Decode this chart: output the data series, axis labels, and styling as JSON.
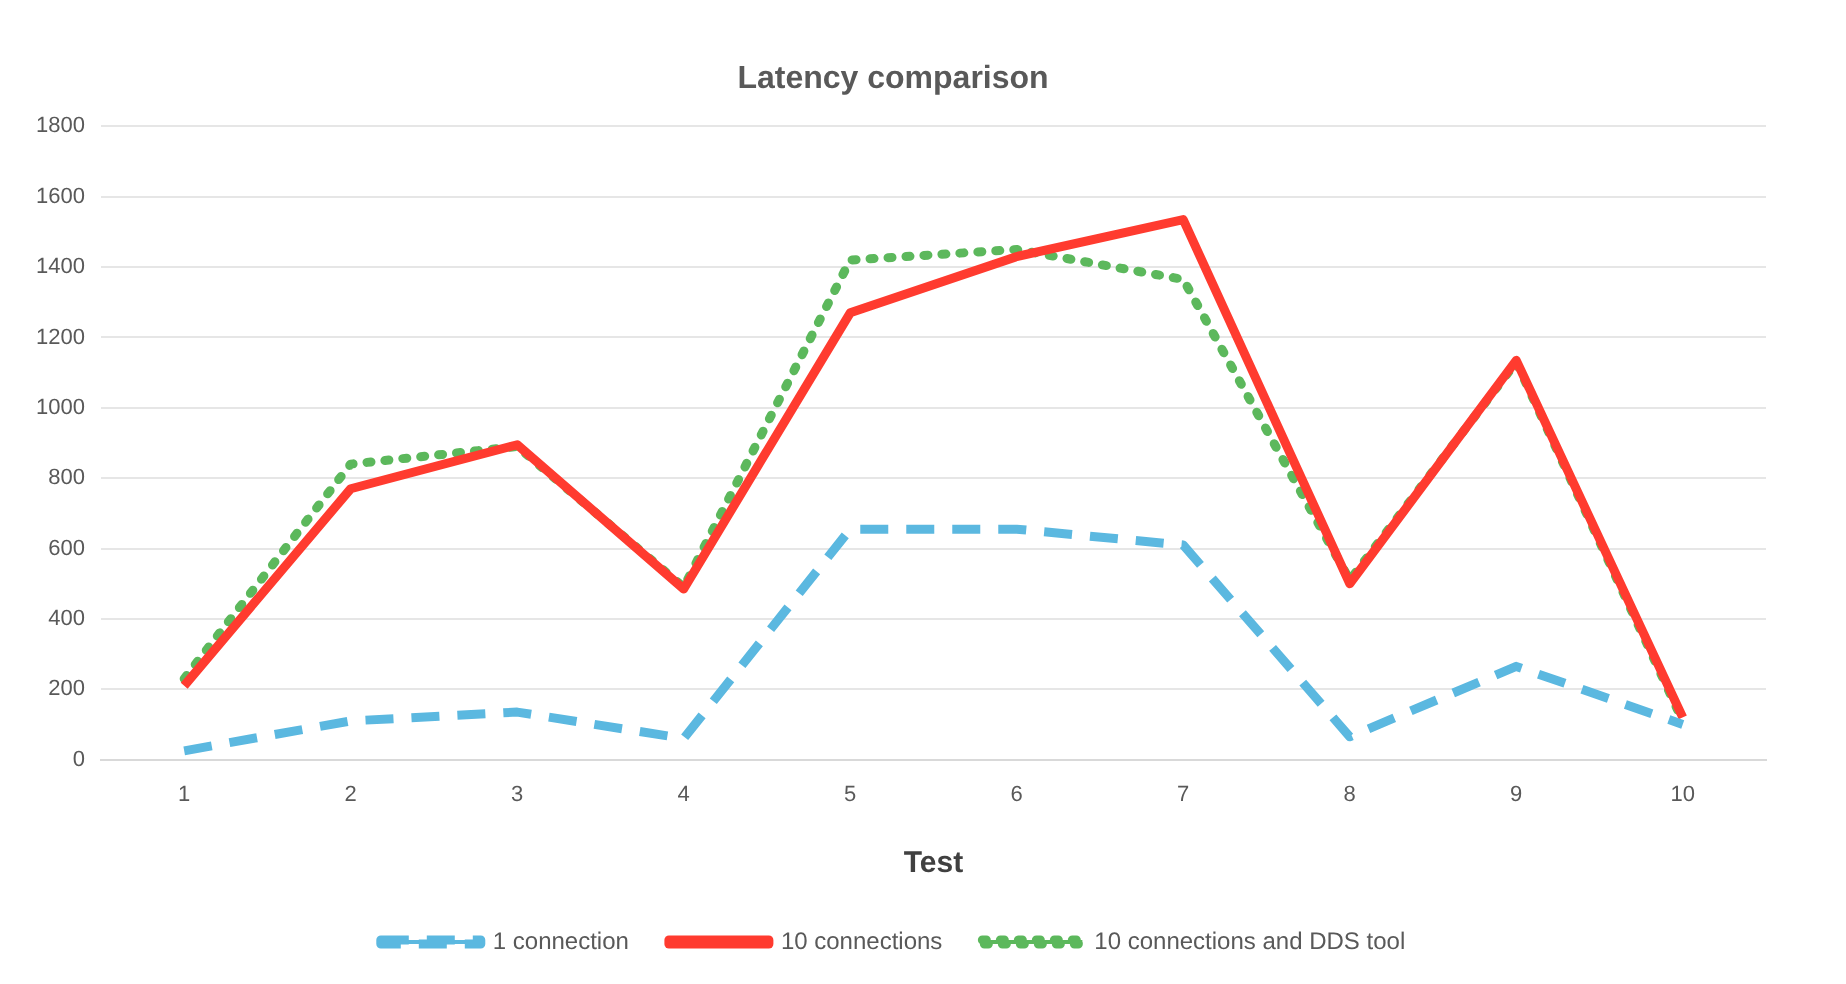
{
  "chart_data": {
    "type": "line",
    "title": "Latency comparison",
    "xlabel": "Test",
    "categories": [
      "1",
      "2",
      "3",
      "4",
      "5",
      "6",
      "7",
      "8",
      "9",
      "10"
    ],
    "series": [
      {
        "name": "1 connection",
        "color": "#5bb8e0",
        "line_style": "dashed",
        "values": [
          25,
          110,
          135,
          60,
          655,
          655,
          610,
          65,
          265,
          100
        ]
      },
      {
        "name": "10 connections",
        "color": "#ff3b2f",
        "line_style": "solid",
        "values": [
          210,
          770,
          895,
          485,
          1270,
          1430,
          1535,
          500,
          1135,
          120
        ]
      },
      {
        "name": "10 connections and DDS tool",
        "color": "#5cb85c",
        "line_style": "dotted",
        "values": [
          230,
          840,
          890,
          490,
          1420,
          1450,
          1365,
          510,
          1130,
          110
        ]
      }
    ],
    "ylim": [
      0,
      1800
    ],
    "yticks": [
      0,
      200,
      400,
      600,
      800,
      1000,
      1200,
      1400,
      1600,
      1800
    ],
    "grid": "y",
    "legend": "bottom",
    "marker": "none"
  }
}
